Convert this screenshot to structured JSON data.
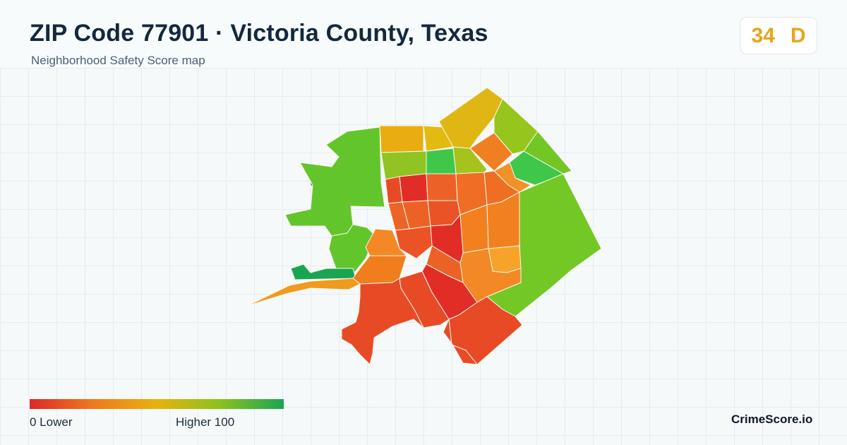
{
  "header": {
    "title": "ZIP Code 77901 · Victoria County, Texas",
    "subtitle": "Neighborhood Safety Score map"
  },
  "score": {
    "value": "34",
    "grade": "D",
    "color": "#e8a419"
  },
  "legend": {
    "min_label": "0  Lower",
    "max_label": "Higher  100",
    "gradient_colors": [
      "#dc2a26",
      "#ee7a1e",
      "#e8b20c",
      "#8cc21c",
      "#18a654"
    ]
  },
  "brand": "CrimeScore.io",
  "colors": {
    "low_score": "#dc2a26",
    "high_score": "#18a654",
    "border": "#fbf7e9",
    "water": "#1e7a60"
  }
}
